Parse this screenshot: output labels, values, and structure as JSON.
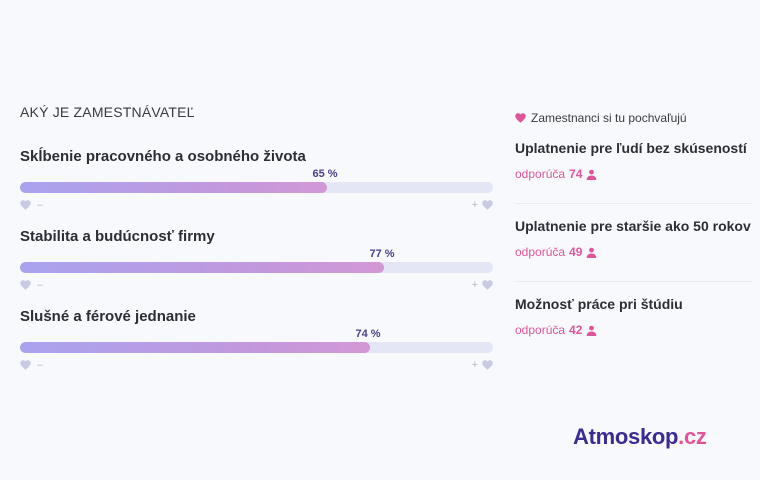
{
  "section_title": "AKÝ JE ZAMESTNÁVATEĽ",
  "metrics": [
    {
      "label": "Skĺbenie pracovného a osobného života",
      "percent_label": "65 %",
      "value": 65
    },
    {
      "label": "Stabilita a budúcnosť firmy",
      "percent_label": "77 %",
      "value": 77
    },
    {
      "label": "Slušné a férové jednanie",
      "percent_label": "74 %",
      "value": 74
    }
  ],
  "scale": {
    "min_symbol": "–",
    "max_symbol": "+"
  },
  "recommendations": {
    "header": "Zamestnanci si tu pochvaľujú",
    "items": [
      {
        "title": "Uplatnenie pre ľudí bez skúseností",
        "prefix": "odporúča",
        "count": "74"
      },
      {
        "title": "Uplatnenie pre staršie ako 50 rokov",
        "prefix": "odporúča",
        "count": "49"
      },
      {
        "title": "Možnosť práce pri štúdiu",
        "prefix": "odporúča",
        "count": "42"
      }
    ]
  },
  "logo": {
    "part1": "Atmoskop",
    "part2": ".cz"
  },
  "colors": {
    "accent_pink": "#e0559a",
    "brand_purple": "#3a2b95",
    "bar_track": "#e4e5f5",
    "bar_fill_start": "#a9a3ef",
    "bar_fill_end": "#d398d6"
  },
  "icons": {
    "scale_icon": "heart-icon",
    "header_icon": "heart-icon",
    "recommend_icon": "person-icon"
  }
}
